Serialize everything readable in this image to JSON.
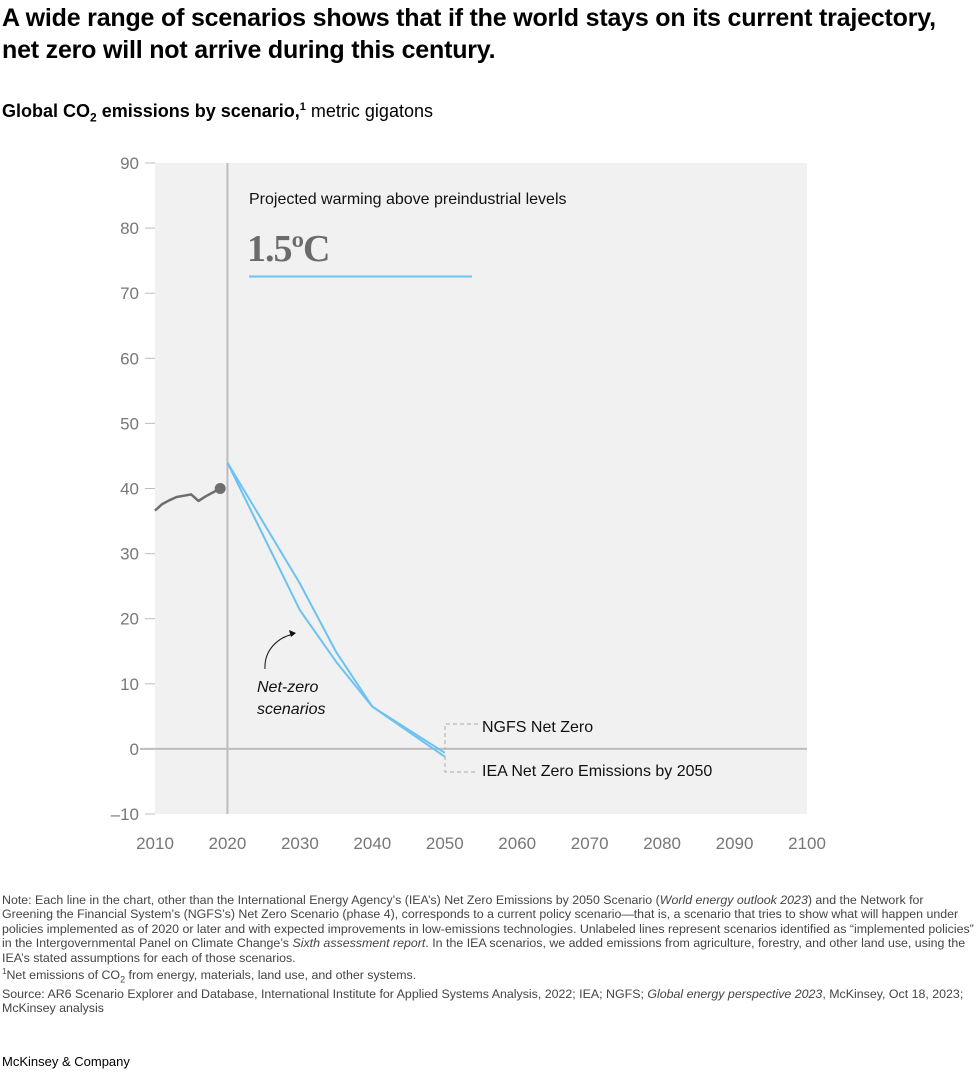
{
  "title": "A wide range of scenarios shows that if the world stays on its current trajectory, net zero will not arrive during this century.",
  "subtitle": {
    "main": "Global CO",
    "sub": "2",
    "rest": " emissions by scenario,",
    "sup": "1",
    "unit": " metric gigatons"
  },
  "chart_data": {
    "type": "line",
    "title": "Global CO2 emissions by scenario, metric gigatons",
    "xlim": [
      2010,
      2100
    ],
    "ylim": [
      -10,
      90
    ],
    "x_ticks": [
      2010,
      2020,
      2030,
      2040,
      2050,
      2060,
      2070,
      2080,
      2090,
      2100
    ],
    "y_ticks": [
      90,
      80,
      70,
      60,
      50,
      40,
      30,
      20,
      10,
      0,
      -10
    ],
    "y_tick_labels": [
      "90",
      "80",
      "70",
      "60",
      "50",
      "40",
      "30",
      "20",
      "10",
      "0",
      "–10"
    ],
    "grid": false,
    "series": [
      {
        "id": "historical",
        "color": "#6e6e6e",
        "x": [
          2010,
          2011,
          2012,
          2013,
          2014,
          2015,
          2016,
          2017,
          2018,
          2019
        ],
        "y": [
          36.6,
          37.6,
          38.2,
          38.7,
          38.9,
          39.1,
          38.1,
          38.8,
          39.4,
          40.0
        ]
      },
      {
        "name": "NGFS Net Zero",
        "color": "#6cc3f0",
        "x": [
          2020,
          2030,
          2035,
          2040,
          2050
        ],
        "y": [
          44.0,
          25.4,
          14.9,
          6.5,
          -0.6
        ]
      },
      {
        "name": "IEA Net Zero Emissions by 2050",
        "color": "#6cc3f0",
        "x": [
          2020,
          2030,
          2035,
          2040,
          2050
        ],
        "y": [
          44.0,
          21.3,
          13.4,
          6.5,
          -1.2
        ]
      }
    ],
    "annotations": {
      "warming_label": "Projected warming above preindustrial levels",
      "warming_value": "1.5ºC",
      "net_zero_label_1": "Net-zero",
      "net_zero_label_2": "scenarios"
    },
    "colors": {
      "plot_bg": "#f1f1f1",
      "axis": "#bdbdbd",
      "tick_text": "#777777",
      "accent": "#6cc3f0"
    }
  },
  "notes": {
    "note_1": "Note: Each line in the chart, other than the International Energy Agency’s (IEA’s) Net Zero Emissions by 2050 Scenario (",
    "note_2_italic": "World energy outlook 2023",
    "note_3": ") and the Network for Greening the Financial System’s (NGFS’s) Net Zero Scenario (phase 4), corresponds to a current policy scenario—that is, a scenario that tries to show what will happen under policies implemented as of 2020 or later and with expected improvements in low-emissions technologies. Unlabeled lines represent scenarios identified as “implemented policies” in the Intergovernmental Panel on Climate Change’s ",
    "note_4_italic": "Sixth assessment report",
    "note_5": ". In the IEA scenarios, we added emissions from agriculture, forestry, and other land use, using the IEA’s stated assumptions for each of those scenarios.",
    "footnote_sup": "1",
    "footnote_a": "Net emissions of CO",
    "footnote_sub": "2",
    "footnote_b": " from energy, materials, land use, and other systems.",
    "source_1": "Source: AR6 Scenario Explorer and Database, International Institute for Applied Systems Analysis, 2022; IEA; NGFS; ",
    "source_2_italic": "Global energy perspective 2023",
    "source_3": ", McKinsey, Oct 18, 2023; McKinsey analysis"
  },
  "brand": "McKinsey & Company"
}
